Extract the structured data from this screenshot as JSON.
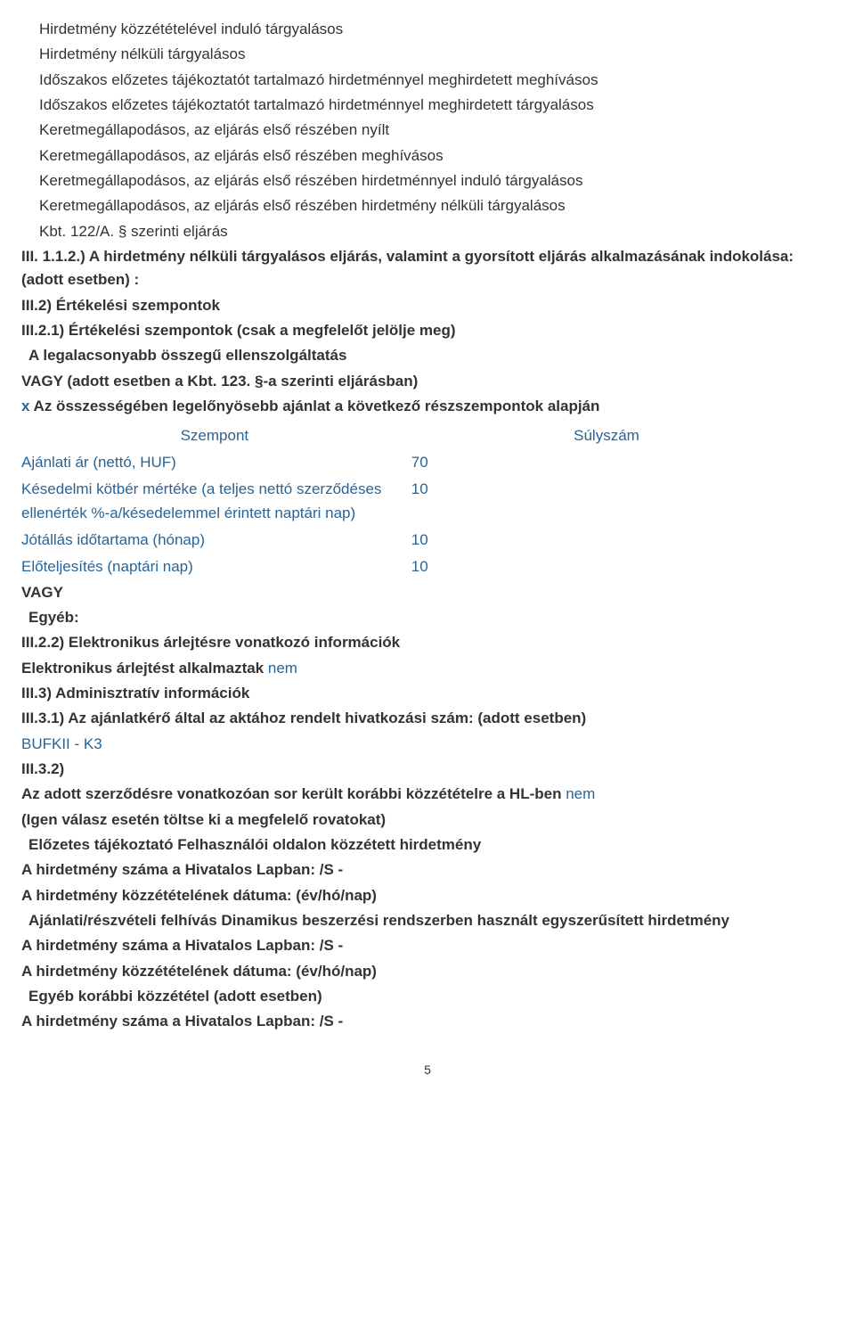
{
  "colors": {
    "text": "#333333",
    "blue": "#2a6496",
    "background": "#ffffff"
  },
  "typography": {
    "font_family": "Arial, Helvetica, sans-serif",
    "font_size_pt": 13,
    "line_height": 1.55,
    "bold_weight": 700
  },
  "lines": {
    "l1": "Hirdetmény közzétételével induló tárgyalásos",
    "l2": "Hirdetmény nélküli tárgyalásos",
    "l3": "Időszakos előzetes tájékoztatót tartalmazó hirdetménnyel meghirdetett meghívásos",
    "l4": "Időszakos előzetes tájékoztatót tartalmazó hirdetménnyel meghirdetett tárgyalásos",
    "l5": "Keretmegállapodásos, az eljárás első részében nyílt",
    "l6": "Keretmegállapodásos, az eljárás első részében meghívásos",
    "l7": "Keretmegállapodásos, az eljárás első részében hirdetménnyel induló tárgyalásos",
    "l8": "Keretmegállapodásos, az eljárás első részében hirdetmény nélküli tárgyalásos",
    "l9": "Kbt. 122/A. § szerinti eljárás"
  },
  "sections": {
    "s112_label": "III. 1.1.2.) A hirdetmény nélküli tárgyalásos eljárás, valamint a gyorsított eljárás alkalmazásának indokolása: (adott esetben) :",
    "s2": "III.2) Értékelési szempontok",
    "s21": "III.2.1) Értékelési szempontok (csak a megfelelőt jelölje meg)",
    "s21_opt1": "A legalacsonyabb összegű ellenszolgáltatás",
    "s21_vagy1": "VAGY (adott esetben a Kbt. 123. §-a szerinti eljárásban)",
    "s21_x": "x",
    "s21_opt2": " Az összességében legelőnyösebb ajánlat a következő részszempontok alapján",
    "szempont_header": "Szempont",
    "sulyszam_header": "Súlyszám",
    "s21_vagy2": "VAGY",
    "s21_egyeb": "Egyéb:",
    "s22": "III.2.2) Elektronikus árlejtésre vonatkozó információk",
    "s22_line_prefix": "Elektronikus árlejtést alkalmaztak ",
    "s22_line_val": "nem",
    "s3": "III.3) Adminisztratív információk",
    "s31": "III.3.1) Az ajánlatkérő által az aktához rendelt hivatkozási szám: (adott esetben)",
    "s31_val": "BUFKII - K3",
    "s32": "III.3.2)",
    "s32_line_prefix": "Az adott szerződésre vonatkozóan sor került korábbi közzétételre a HL-ben ",
    "s32_line_val": "nem",
    "s32_paren": "(Igen válasz esetén töltse ki a megfelelő rovatokat)",
    "s32_opt1": "Előzetes tájékoztató   Felhasználói oldalon közzétett hirdetmény",
    "s32_num": "A hirdetmény száma a Hivatalos Lapban: /S -",
    "s32_date": "A hirdetmény közzétételének dátuma: (év/hó/nap)",
    "s32_opt2": "Ajánlati/részvételi felhívás   Dinamikus beszerzési rendszerben használt egyszerűsített hirdetmény",
    "s32_opt3": "Egyéb korábbi közzététel (adott esetben)"
  },
  "criteria": [
    {
      "label": "Ajánlati ár (nettó, HUF)",
      "value": "70"
    },
    {
      "label": "Késedelmi kötbér mértéke (a teljes nettó szerződéses ellenérték %-a/késedelemmel érintett naptári nap)",
      "value": "10"
    },
    {
      "label": "Jótállás időtartama (hónap)",
      "value": "10"
    },
    {
      "label": "Előteljesítés (naptári nap)",
      "value": "10"
    }
  ],
  "page_number": "5"
}
